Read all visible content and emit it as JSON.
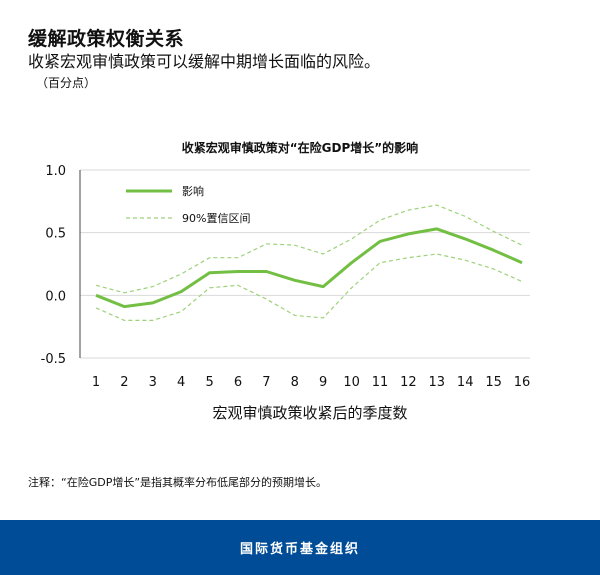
{
  "header": {
    "title": "缓解政策权衡关系",
    "subtitle": "收紧宏观审慎政策可以缓解中期增长面临的风险。",
    "unit": "（百分点）"
  },
  "note": "注释：“在险GDP增长”是指其概率分布低尾部分的预期增长。",
  "footer": {
    "org": "国际货币基金组织"
  },
  "colors": {
    "line": "#72bf44",
    "ci": "#9dd27a",
    "grid": "#d9d9d9",
    "footer": "#004c97"
  },
  "chart_data": {
    "type": "line",
    "title": "收紧宏观审慎政策对“在险GDP增长”的影响",
    "xlabel": "宏观审慎政策收紧后的季度数",
    "ylabel": "",
    "x": [
      1,
      2,
      3,
      4,
      5,
      6,
      7,
      8,
      9,
      10,
      11,
      12,
      13,
      14,
      15,
      16
    ],
    "ylim": [
      -0.5,
      1.0
    ],
    "yticks": [
      "-0.5",
      "0.0",
      "0.5",
      "1.0"
    ],
    "grid": true,
    "legend_position": "top-left",
    "series": [
      {
        "name": "影响",
        "style": "solid",
        "values": [
          0.0,
          -0.09,
          -0.06,
          0.03,
          0.18,
          0.19,
          0.19,
          0.12,
          0.07,
          0.26,
          0.43,
          0.49,
          0.53,
          0.45,
          0.36,
          0.26
        ]
      },
      {
        "name": "90%置信区间",
        "style": "dashed",
        "values": [
          0.08,
          0.02,
          0.07,
          0.17,
          0.3,
          0.3,
          0.41,
          0.4,
          0.33,
          0.45,
          0.6,
          0.68,
          0.72,
          0.63,
          0.51,
          0.4
        ]
      },
      {
        "name": "",
        "style": "dashed",
        "values": [
          -0.1,
          -0.2,
          -0.2,
          -0.13,
          0.06,
          0.08,
          -0.03,
          -0.16,
          -0.18,
          0.06,
          0.26,
          0.3,
          0.33,
          0.28,
          0.21,
          0.11
        ]
      }
    ]
  }
}
